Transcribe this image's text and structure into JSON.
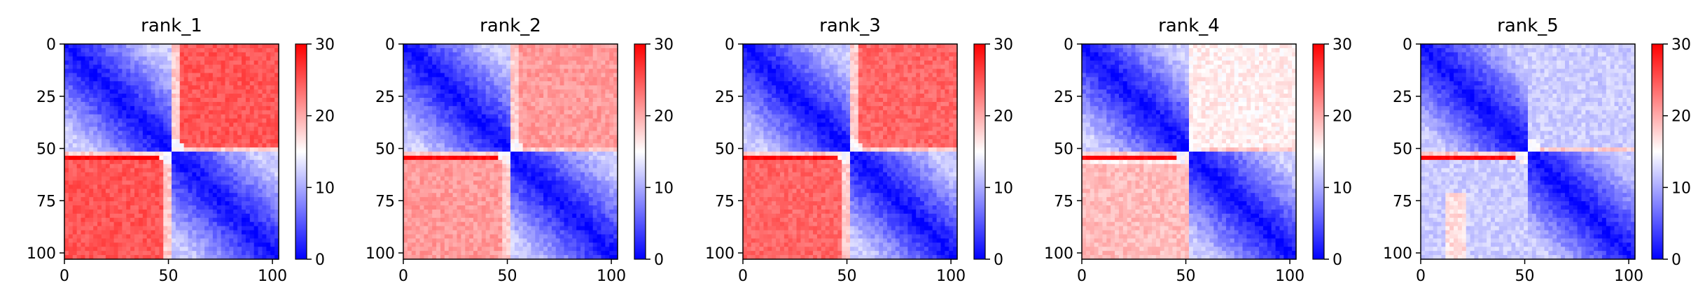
{
  "chart_data": [
    {
      "type": "heatmap",
      "title": "rank_1",
      "profile": "rank_1",
      "x_ticks": [
        "0",
        "50",
        "100"
      ],
      "y_ticks": [
        "0",
        "25",
        "50",
        "75",
        "100"
      ],
      "colorbar": {
        "min": 0,
        "max": 30,
        "ticks": [
          "0",
          "10",
          "20",
          "30"
        ],
        "colormap": [
          "#0000ff",
          "#ffffff",
          "#ff0000"
        ]
      },
      "xlim": [
        0,
        103
      ],
      "ylim": [
        103,
        0
      ],
      "block_boundary": 52
    },
    {
      "type": "heatmap",
      "title": "rank_2",
      "profile": "rank_2",
      "x_ticks": [
        "0",
        "50",
        "100"
      ],
      "y_ticks": [
        "0",
        "25",
        "50",
        "75",
        "100"
      ],
      "colorbar": {
        "min": 0,
        "max": 30,
        "ticks": [
          "0",
          "10",
          "20",
          "30"
        ],
        "colormap": [
          "#0000ff",
          "#ffffff",
          "#ff0000"
        ]
      },
      "xlim": [
        0,
        103
      ],
      "ylim": [
        103,
        0
      ],
      "block_boundary": 52
    },
    {
      "type": "heatmap",
      "title": "rank_3",
      "profile": "rank_3",
      "x_ticks": [
        "0",
        "50",
        "100"
      ],
      "y_ticks": [
        "0",
        "25",
        "50",
        "75",
        "100"
      ],
      "colorbar": {
        "min": 0,
        "max": 30,
        "ticks": [
          "0",
          "10",
          "20",
          "30"
        ],
        "colormap": [
          "#0000ff",
          "#ffffff",
          "#ff0000"
        ]
      },
      "xlim": [
        0,
        103
      ],
      "ylim": [
        103,
        0
      ],
      "block_boundary": 52
    },
    {
      "type": "heatmap",
      "title": "rank_4",
      "profile": "rank_4",
      "x_ticks": [
        "0",
        "50",
        "100"
      ],
      "y_ticks": [
        "0",
        "25",
        "50",
        "75",
        "100"
      ],
      "colorbar": {
        "min": 0,
        "max": 30,
        "ticks": [
          "0",
          "10",
          "20",
          "30"
        ],
        "colormap": [
          "#0000ff",
          "#ffffff",
          "#ff0000"
        ]
      },
      "xlim": [
        0,
        103
      ],
      "ylim": [
        103,
        0
      ],
      "block_boundary": 52
    },
    {
      "type": "heatmap",
      "title": "rank_5",
      "profile": "rank_5",
      "x_ticks": [
        "0",
        "50",
        "100"
      ],
      "y_ticks": [
        "0",
        "25",
        "50",
        "75",
        "100"
      ],
      "colorbar": {
        "min": 0,
        "max": 30,
        "ticks": [
          "0",
          "10",
          "20",
          "30"
        ],
        "colormap": [
          "#0000ff",
          "#ffffff",
          "#ff0000"
        ]
      },
      "xlim": [
        0,
        103
      ],
      "ylim": [
        103,
        0
      ],
      "block_boundary": 52
    }
  ]
}
